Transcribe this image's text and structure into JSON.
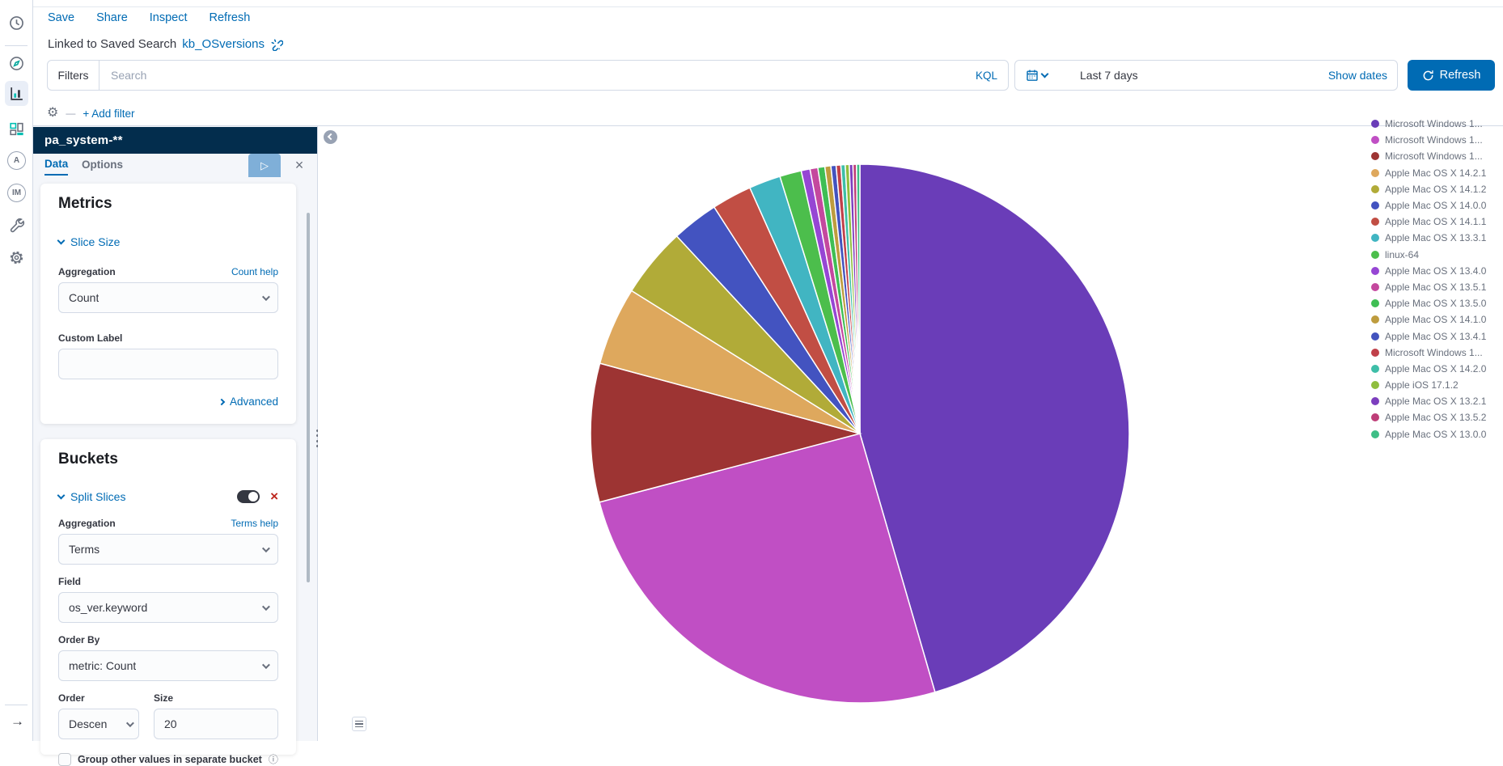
{
  "topnav": {
    "items": [
      "Save",
      "Share",
      "Inspect",
      "Refresh"
    ]
  },
  "linked": {
    "prefix": "Linked to Saved Search",
    "link": "kb_OSversions"
  },
  "querybar": {
    "filters_label": "Filters",
    "search_placeholder": "Search",
    "language": "KQL",
    "timerange": "Last 7 days",
    "show_dates": "Show dates",
    "refresh_label": "Refresh",
    "refresh_icon": "refresh-arrow",
    "add_filter": "+ Add filter",
    "primary_color": "#006BB4"
  },
  "sidebar_nav": {
    "icons": [
      "recent-clock",
      "discover-compass",
      "visualize-chart",
      "dashboard-grid",
      "app-a",
      "app-im",
      "devtools-wrench",
      "management-gear",
      "expand-arrow"
    ],
    "selected": "visualize-chart",
    "expand_glyph": "→"
  },
  "editor": {
    "index_pattern": "pa_system-**",
    "tabs": {
      "data": "Data",
      "options": "Options"
    },
    "apply_glyph": "▷",
    "discard_glyph": "×",
    "metrics": {
      "heading": "Metrics",
      "accordion": "Slice Size",
      "aggregation_label": "Aggregation",
      "aggregation_help": "Count help",
      "aggregation_value": "Count",
      "custom_label": "Custom Label",
      "custom_value": "",
      "advanced": "Advanced"
    },
    "buckets": {
      "heading": "Buckets",
      "accordion": "Split Slices",
      "aggregation_label": "Aggregation",
      "aggregation_help": "Terms help",
      "aggregation_value": "Terms",
      "field_label": "Field",
      "field_value": "os_ver.keyword",
      "order_by_label": "Order By",
      "order_by_value": "metric: Count",
      "order_label": "Order",
      "order_value": "Descen",
      "size_label": "Size",
      "size_value": "20",
      "group_other_label": "Group other values in separate bucket",
      "info_glyph": "ⓘ"
    }
  },
  "chart_data": {
    "type": "pie",
    "title": "",
    "metric": "Count",
    "split_field": "os_ver.keyword",
    "legend_position": "right",
    "start_angle_deg": 0,
    "clockwise": true,
    "values_are_estimated_percent": true,
    "slices": [
      {
        "label": "Microsoft Windows 1...",
        "color": "#6A3DB8",
        "percent": 45.5
      },
      {
        "label": "Microsoft Windows 1...",
        "color": "#C04FC4",
        "percent": 25.4
      },
      {
        "label": "Microsoft Windows 1...",
        "color": "#9D3433",
        "percent": 8.3
      },
      {
        "label": "Apple Mac OS X 14.2.1",
        "color": "#DEA85D",
        "percent": 4.7
      },
      {
        "label": "Apple Mac OS X 14.1.2",
        "color": "#B1AB38",
        "percent": 4.2
      },
      {
        "label": "Apple Mac OS X 14.0.0",
        "color": "#4353C0",
        "percent": 2.8
      },
      {
        "label": "Apple Mac OS X 14.1.1",
        "color": "#C14E44",
        "percent": 2.4
      },
      {
        "label": "Apple Mac OS X 13.3.1",
        "color": "#41B5C2",
        "percent": 1.9
      },
      {
        "label": "linux-64",
        "color": "#4CBE4C",
        "percent": 1.3
      },
      {
        "label": "Apple Mac OS X 13.4.0",
        "color": "#9646D4",
        "percent": 0.53
      },
      {
        "label": "Apple Mac OS X 13.5.1",
        "color": "#C4489E",
        "percent": 0.47
      },
      {
        "label": "Apple Mac OS X 13.5.0",
        "color": "#3FBE54",
        "percent": 0.42
      },
      {
        "label": "Apple Mac OS X 14.1.0",
        "color": "#BE9C3E",
        "percent": 0.36
      },
      {
        "label": "Apple Mac OS X 13.4.1",
        "color": "#4353BE",
        "percent": 0.31
      },
      {
        "label": "Microsoft Windows 1...",
        "color": "#C0404A",
        "percent": 0.28
      },
      {
        "label": "Apple Mac OS X 14.2.0",
        "color": "#3EBEA8",
        "percent": 0.26
      },
      {
        "label": "Apple iOS 17.1.2",
        "color": "#8FBE3E",
        "percent": 0.24
      },
      {
        "label": "Apple Mac OS X 13.2.1",
        "color": "#7C3EBE",
        "percent": 0.22
      },
      {
        "label": "Apple Mac OS X 13.5.2",
        "color": "#BE3E78",
        "percent": 0.21
      },
      {
        "label": "Apple Mac OS X 13.0.0",
        "color": "#3EBE86",
        "percent": 0.2
      }
    ]
  }
}
